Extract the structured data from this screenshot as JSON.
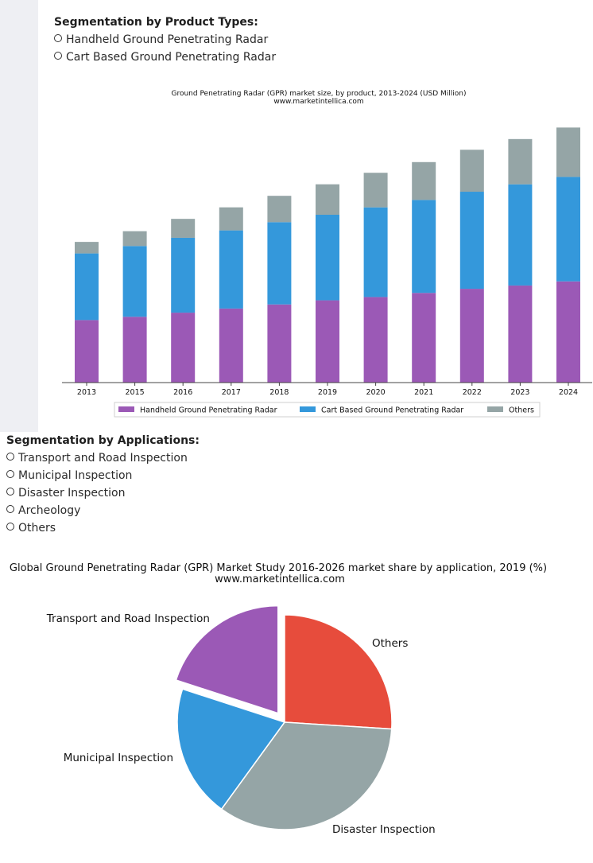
{
  "product_section": {
    "title": "Segmentation by Product Types:",
    "items": [
      "Handheld Ground Penetrating Radar",
      "Cart Based Ground Penetrating Radar"
    ]
  },
  "application_section": {
    "title": "Segmentation by Applications:",
    "items": [
      "Transport and Road Inspection",
      "Municipal Inspection",
      "Disaster Inspection",
      "Archeology",
      "Others"
    ]
  },
  "chart_data": [
    {
      "type": "bar",
      "stacked": true,
      "title": "Ground Penetrating Radar (GPR) market size, by product, 2013-2024 (USD Million)",
      "subtitle": "www.marketintellica.com",
      "categories": [
        "2013",
        "2015",
        "2016",
        "2017",
        "2018",
        "2019",
        "2020",
        "2021",
        "2022",
        "2023",
        "2024"
      ],
      "series": [
        {
          "name": "Handheld Ground Penetrating Radar",
          "color": "#9b59b6",
          "values": [
            76,
            80,
            85,
            90,
            95,
            100,
            104,
            109,
            114,
            118,
            123
          ]
        },
        {
          "name": "Cart Based Ground Penetrating Radar",
          "color": "#3498db",
          "values": [
            81,
            86,
            91,
            95,
            100,
            104,
            109,
            113,
            118,
            123,
            127
          ]
        },
        {
          "name": "Others",
          "color": "#95a5a6",
          "values": [
            14,
            18,
            23,
            28,
            32,
            37,
            42,
            46,
            51,
            55,
            60
          ]
        }
      ],
      "ylim": [
        0,
        320
      ],
      "xlabel": "",
      "ylabel": "",
      "legend": "bottom"
    },
    {
      "type": "pie",
      "title": "Global Ground Penetrating Radar (GPR) Market Study 2016-2026 market share by application, 2019 (%)",
      "subtitle": "www.marketintellica.com",
      "slices": [
        {
          "label": "Others",
          "value": 26,
          "color": "#e74c3c",
          "explode": false
        },
        {
          "label": "Disaster Inspection",
          "value": 34,
          "color": "#95a5a6",
          "explode": false
        },
        {
          "label": "Municipal Inspection",
          "value": 20,
          "color": "#3498db",
          "explode": false
        },
        {
          "label": "Transport and Road Inspection",
          "value": 20,
          "color": "#9b59b6",
          "explode": true
        }
      ]
    }
  ]
}
